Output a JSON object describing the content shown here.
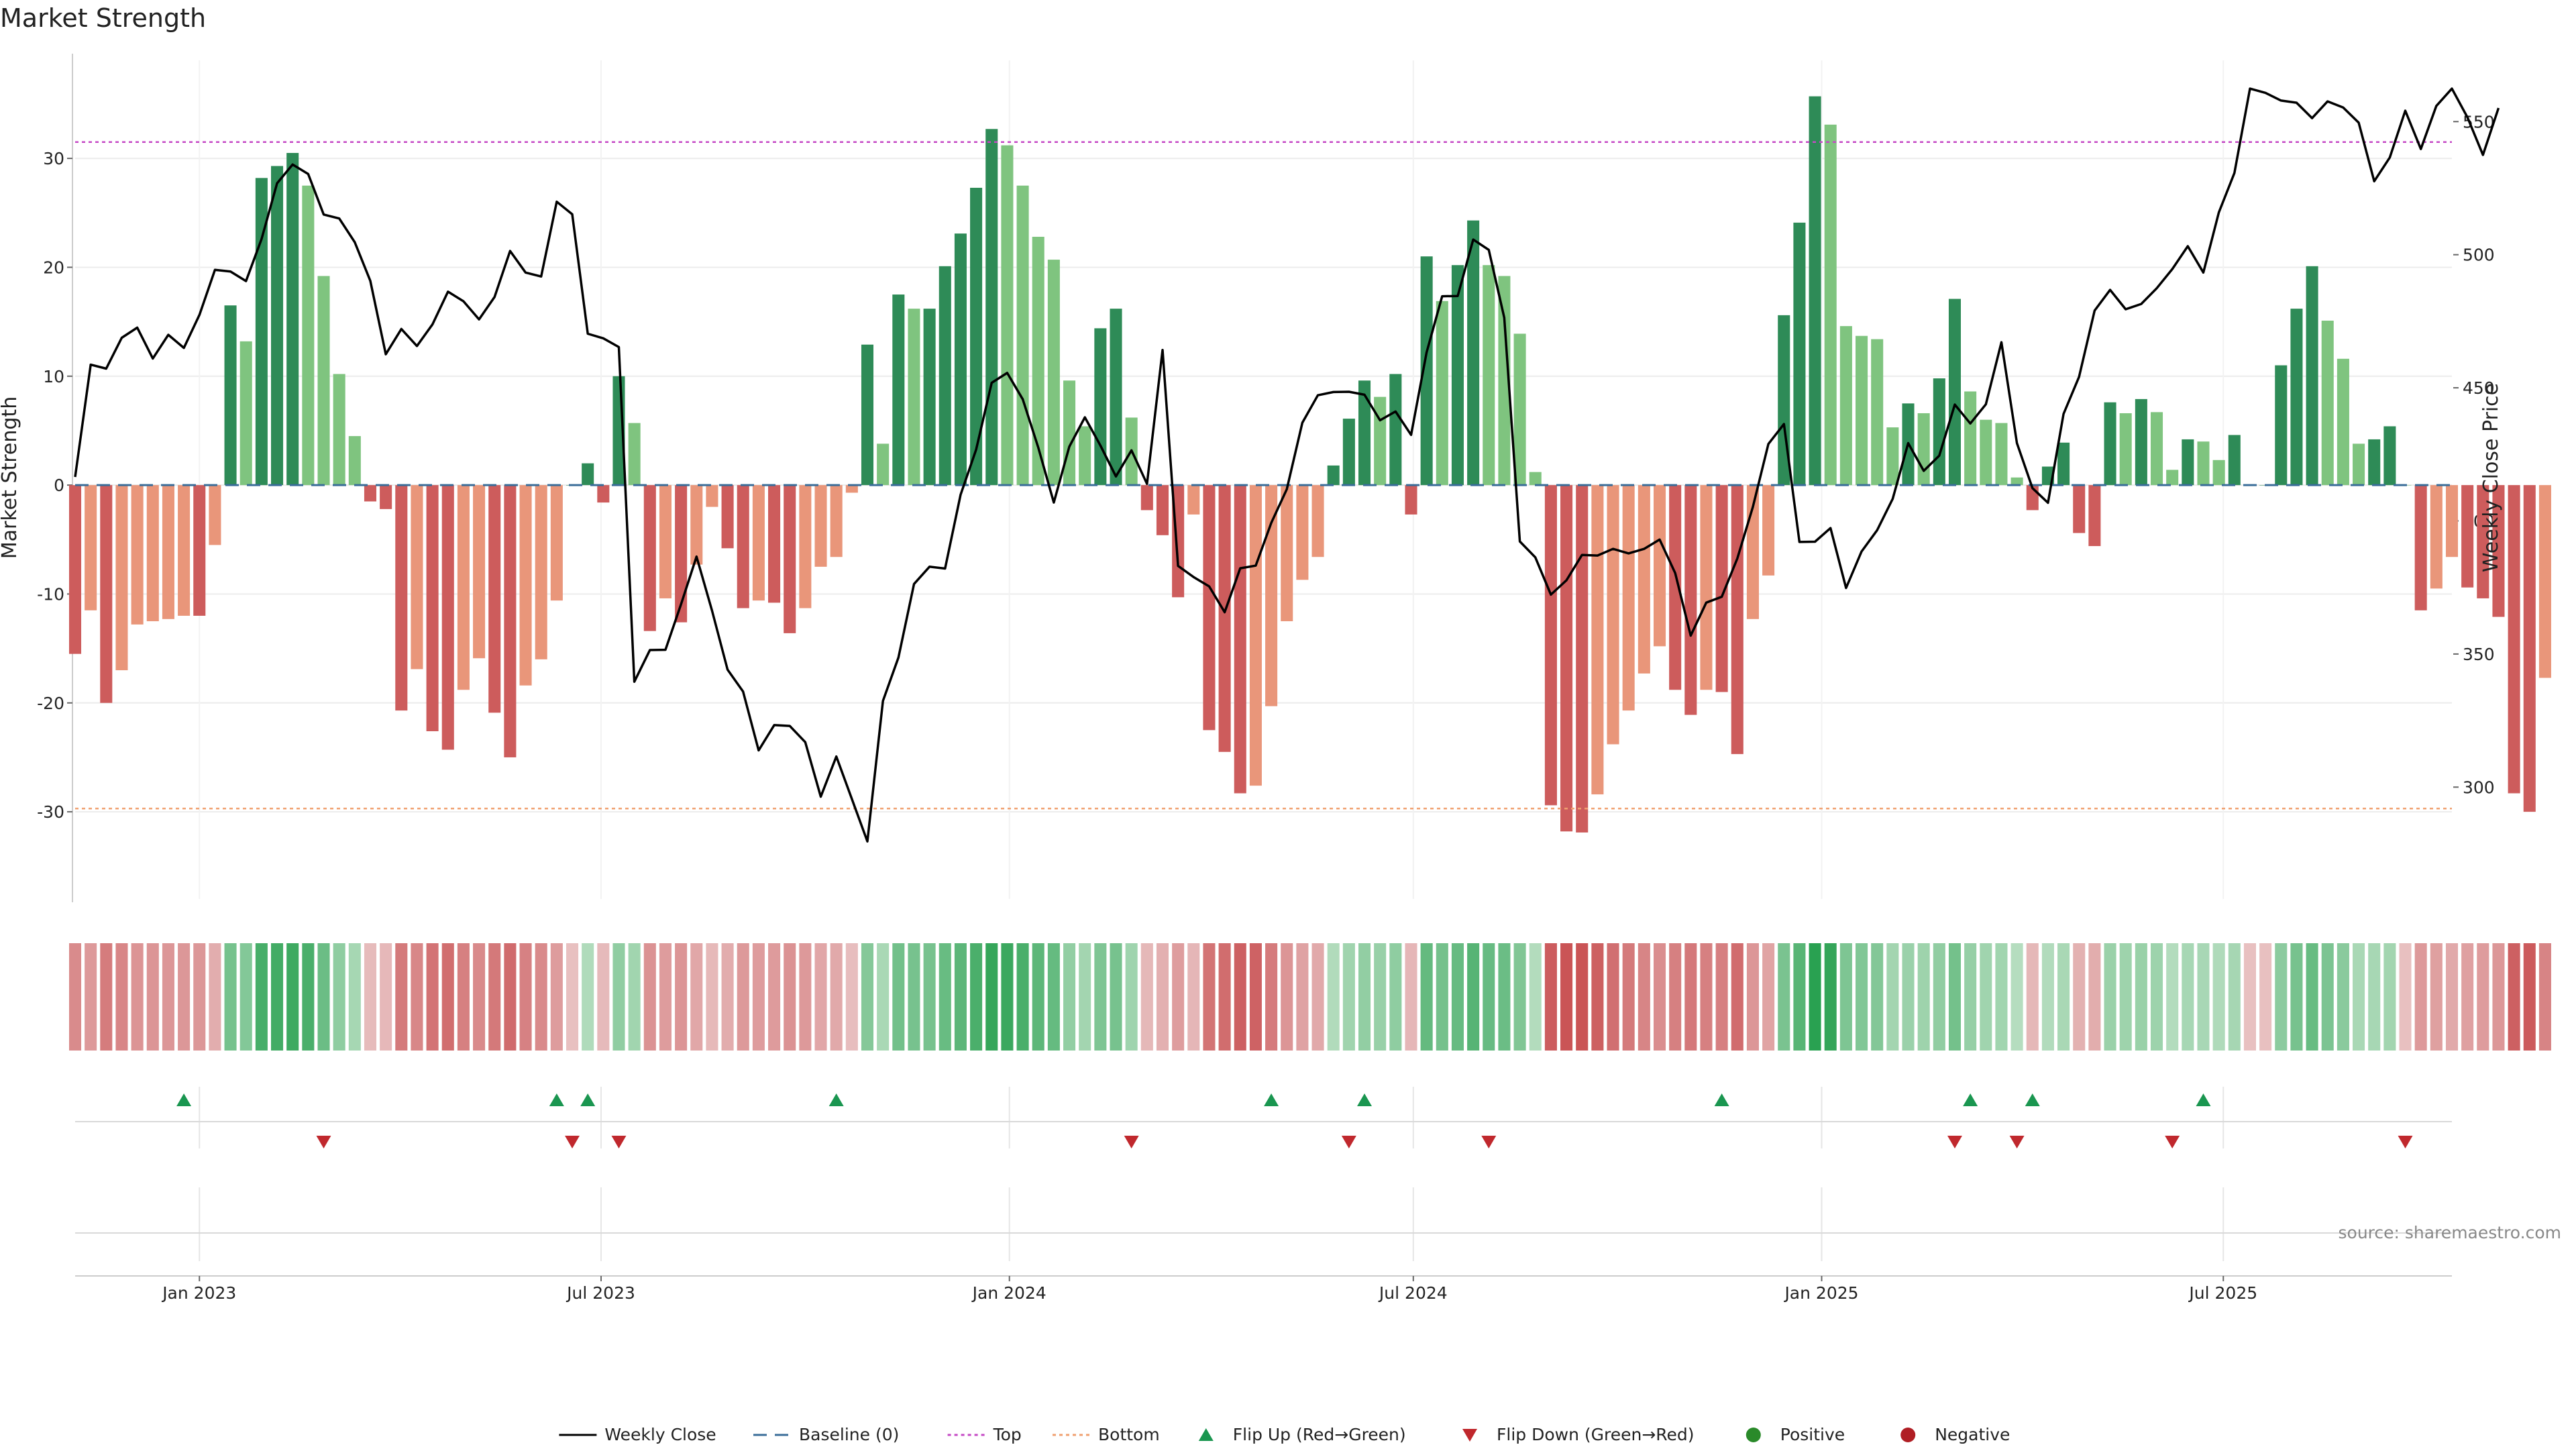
{
  "chart_data": {
    "type": "bar",
    "title": "Market Strength",
    "ylabel": "Market Strength",
    "y2label": "Weekly Close Price",
    "ylim": [
      -38,
      39
    ],
    "y2lim": [
      258,
      573
    ],
    "yticks": [
      -30,
      -20,
      -10,
      0,
      10,
      20,
      30
    ],
    "y2ticks": [
      300,
      350,
      400,
      450,
      500,
      550
    ],
    "top_line": 31.5,
    "bottom_line": -29.7,
    "baseline": 0,
    "x_start": "2022-11-06",
    "week_days": 7,
    "x_range": [
      "2022-11-06",
      "2025-10-12"
    ],
    "xtick_labels": [
      {
        "date": "2023-01-01",
        "label": "Jan 2023"
      },
      {
        "date": "2023-07-01",
        "label": "Jul 2023"
      },
      {
        "date": "2024-01-01",
        "label": "Jan 2024"
      },
      {
        "date": "2024-07-01",
        "label": "Jul 2024"
      },
      {
        "date": "2025-01-01",
        "label": "Jan 2025"
      },
      {
        "date": "2025-07-01",
        "label": "Jul 2025"
      }
    ],
    "grid": true,
    "legend_position": "bottom-center",
    "strength": [
      -15.5,
      -11.5,
      -20,
      -17,
      -12.8,
      -12.5,
      -12.3,
      -12,
      -12,
      -5.5,
      16.5,
      13.2,
      28.2,
      29.3,
      30.5,
      27.5,
      19.2,
      10.2,
      4.5,
      -1.5,
      -2.2,
      -20.7,
      -16.9,
      -22.6,
      -24.3,
      -18.8,
      -15.9,
      -20.9,
      -25,
      -18.4,
      -16,
      -10.6,
      0,
      2,
      -1.6,
      10,
      5.7,
      -13.4,
      -10.4,
      -12.6,
      -7.3,
      -2,
      -5.8,
      -11.3,
      -10.6,
      -10.8,
      -13.6,
      -11.3,
      -7.5,
      -6.6,
      -0.7,
      12.9,
      3.8,
      17.5,
      16.2,
      16.2,
      20.1,
      23.1,
      27.3,
      32.7,
      31.2,
      27.5,
      22.8,
      20.7,
      9.6,
      5.4,
      14.4,
      16.2,
      6.2,
      -2.3,
      -4.6,
      -10.3,
      -2.7,
      -22.5,
      -24.5,
      -28.3,
      -27.6,
      -20.3,
      -12.5,
      -8.7,
      -6.6,
      1.8,
      6.1,
      9.6,
      8.1,
      10.2,
      -2.7,
      21,
      16.9,
      20.2,
      24.3,
      20.2,
      19.2,
      13.9,
      1.2,
      -29.4,
      -31.8,
      -31.9,
      -28.4,
      -23.8,
      -20.7,
      -17.3,
      -14.8,
      -18.8,
      -21.1,
      -18.8,
      -19,
      -24.7,
      -12.3,
      -8.3,
      15.6,
      24.1,
      35.7,
      33.1,
      14.6,
      13.7,
      13.4,
      5.3,
      7.5,
      6.6,
      9.8,
      17.1,
      8.6,
      6,
      5.7,
      0.7,
      -2.3,
      1.7,
      3.9,
      -4.4,
      -5.6,
      7.6,
      6.6,
      7.9,
      6.7,
      1.4,
      4.2,
      4,
      2.3,
      4.6,
      0,
      0,
      11,
      16.2,
      20.1,
      15.1,
      11.6,
      3.8,
      4.2,
      5.4,
      0,
      -11.5,
      -9.5,
      -6.6,
      -9.4,
      -10.4,
      -12.1,
      -28.3,
      -30,
      -17.7
    ],
    "close": [
      416.5,
      458.7,
      457.2,
      468.8,
      472.6,
      461,
      469.9,
      465,
      477.4,
      494.3,
      493.7,
      490.1,
      505.9,
      526.8,
      533.9,
      530.3,
      515.1,
      513.6,
      504.7,
      490.2,
      462.6,
      472.1,
      465.7,
      473.8,
      486.1,
      482.5,
      475.7,
      484.1,
      501.4,
      493.3,
      491.8,
      519.9,
      515.2,
      470.3,
      468.6,
      465.3,
      339.6,
      351.5,
      351.6,
      368.6,
      386.6,
      366.3,
      344.1,
      335.9,
      313.8,
      323.3,
      323,
      316.9,
      296.4,
      311.5,
      295.6,
      279.6,
      332.4,
      348.7,
      376.3,
      382.8,
      382.1,
      409.8,
      426.8,
      451.9,
      455.6,
      445.7,
      427.6,
      406.9,
      427.9,
      438.9,
      428.3,
      416.7,
      426.5,
      413.9,
      464.2,
      383.1,
      378.9,
      375.4,
      365.7,
      382.2,
      383.2,
      399.3,
      411.9,
      436.9,
      447.2,
      448.4,
      448.5,
      447.4,
      437.8,
      441.1,
      432.3,
      463.3,
      484.4,
      484.5,
      505.7,
      501.8,
      476.3,
      392.3,
      386.3,
      372.3,
      377.7,
      387.2,
      387,
      389.5,
      387.8,
      389.5,
      393,
      380.4,
      356.9,
      369.3,
      371.5,
      385.9,
      405.2,
      428.9,
      436.4,
      392.1,
      392.2,
      397.3,
      374.8,
      388.5,
      396.5,
      408.3,
      429.2,
      418.8,
      424.5,
      443.7,
      436.6,
      443.8,
      467.1,
      429.2,
      412.3,
      406.8,
      440.2,
      454.1,
      479,
      486.8,
      479.5,
      481.5,
      487.4,
      494.6,
      503.2,
      493.3,
      515.9,
      530.7,
      562.4,
      560.8,
      557.9,
      557.1,
      551.3,
      557.6,
      555.3,
      549.6,
      527.6,
      536.5,
      554.1,
      539.7,
      555.9,
      562.4,
      551.6,
      537.5,
      555.1
    ],
    "flip_up": [
      "2022-12-25",
      "2023-06-11",
      "2023-06-25",
      "2023-10-15",
      "2024-04-28",
      "2024-06-09",
      "2024-11-17",
      "2025-03-09",
      "2025-04-06",
      "2025-06-22"
    ],
    "flip_down": [
      "2023-02-26",
      "2023-06-18",
      "2023-07-09",
      "2024-02-25",
      "2024-06-02",
      "2024-08-04",
      "2025-03-02",
      "2025-03-30",
      "2025-06-08",
      "2025-09-21"
    ],
    "legend": [
      {
        "type": "line",
        "label": "Weekly Close",
        "color": "#000000",
        "dash": ""
      },
      {
        "type": "line",
        "label": "Baseline (0)",
        "color": "#3a6d99",
        "dash": "20 12"
      },
      {
        "type": "line",
        "label": "Top",
        "color": "#c548c5",
        "dash": "5 5"
      },
      {
        "type": "line",
        "label": "Bottom",
        "color": "#f0a070",
        "dash": "5 5"
      },
      {
        "type": "tri-up",
        "label": "Flip Up (Red→Green)",
        "color": "#1a9650"
      },
      {
        "type": "tri-down",
        "label": "Flip Down (Green→Red)",
        "color": "#c0282d"
      },
      {
        "type": "dot",
        "label": "Positive",
        "color": "#2a8a2a"
      },
      {
        "type": "dot",
        "label": "Negative",
        "color": "#b01e24"
      }
    ],
    "source": "source: sharemaestro.com",
    "colors": {
      "pos_strong": "#2e8b57",
      "pos_weak": "#7fc47f",
      "neg_strong": "#cd5c5c",
      "neg_weak": "#e9967a",
      "close_line": "#000000",
      "top_line": "#c548c5",
      "bottom_line": "#f0a070",
      "baseline": "#3a6d99",
      "flip_up": "#1a9650",
      "flip_down": "#c0282d"
    }
  }
}
